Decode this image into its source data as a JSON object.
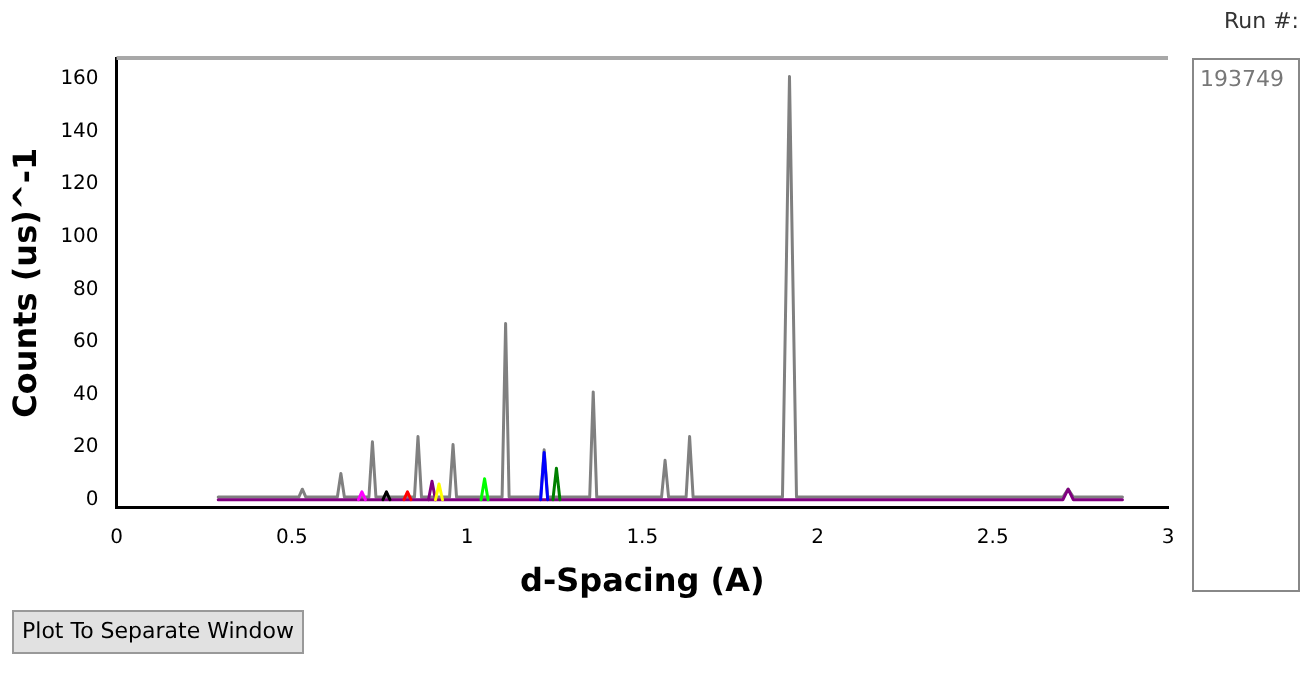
{
  "chart_data": {
    "type": "line",
    "xlabel": "d-Spacing (A)",
    "ylabel": "Counts (us)^-1",
    "xlim": [
      0,
      3
    ],
    "xticks": [
      0,
      0.5,
      1,
      1.5,
      2,
      2.5,
      3
    ],
    "ylim": [
      -3,
      168
    ],
    "yticks": [
      0,
      20,
      40,
      60,
      80,
      100,
      120,
      140,
      160
    ],
    "grid": false,
    "legend": false,
    "marker": "none",
    "line_style": "solid",
    "annotations": [
      "Run #:",
      "193749",
      "Plot To Separate Window"
    ],
    "series": [
      {
        "color": "#808080",
        "x": [
          0.29,
          0.5,
          0.52,
          0.53,
          0.54,
          0.6,
          0.63,
          0.64,
          0.65,
          0.72,
          0.73,
          0.74,
          0.85,
          0.86,
          0.87,
          0.95,
          0.96,
          0.97,
          1.1,
          1.11,
          1.12,
          1.21,
          1.22,
          1.23,
          1.35,
          1.36,
          1.37,
          1.555,
          1.565,
          1.575,
          1.625,
          1.635,
          1.645,
          1.9,
          1.92,
          1.94,
          2.7,
          2.715,
          2.73,
          2.87
        ],
        "values": [
          1,
          1,
          1,
          4,
          1,
          1,
          1,
          10,
          1,
          1,
          22,
          1,
          1,
          24,
          1,
          1,
          21,
          1,
          1,
          67,
          1,
          1,
          19,
          1,
          1,
          41,
          1,
          1,
          15,
          1,
          1,
          24,
          1,
          1,
          161,
          1,
          1,
          4,
          1,
          1
        ]
      },
      {
        "color": "#800080",
        "x": [
          0.29,
          2.7,
          2.715,
          2.73,
          2.87
        ],
        "values": [
          0,
          0,
          4,
          0,
          0
        ]
      },
      {
        "color": "#ff00ff",
        "x": [
          0.69,
          0.7,
          0.71
        ],
        "values": [
          0,
          3,
          0
        ]
      },
      {
        "color": "#000000",
        "x": [
          0.76,
          0.77,
          0.78
        ],
        "values": [
          0,
          3,
          0
        ]
      },
      {
        "color": "#ff0000",
        "x": [
          0.82,
          0.83,
          0.84
        ],
        "values": [
          0,
          3,
          0
        ]
      },
      {
        "color": "#800080",
        "x": [
          0.89,
          0.9,
          0.91
        ],
        "values": [
          0,
          7,
          0
        ]
      },
      {
        "color": "#ffff00",
        "x": [
          0.91,
          0.92,
          0.93
        ],
        "values": [
          0,
          6,
          0
        ]
      },
      {
        "color": "#00ff00",
        "x": [
          1.04,
          1.05,
          1.06
        ],
        "values": [
          0,
          8,
          0
        ]
      },
      {
        "color": "#0000ff",
        "x": [
          1.21,
          1.22,
          1.23
        ],
        "values": [
          0,
          18,
          0
        ]
      },
      {
        "color": "#008000",
        "x": [
          1.245,
          1.255,
          1.265
        ],
        "values": [
          0,
          12,
          0
        ]
      }
    ]
  }
}
